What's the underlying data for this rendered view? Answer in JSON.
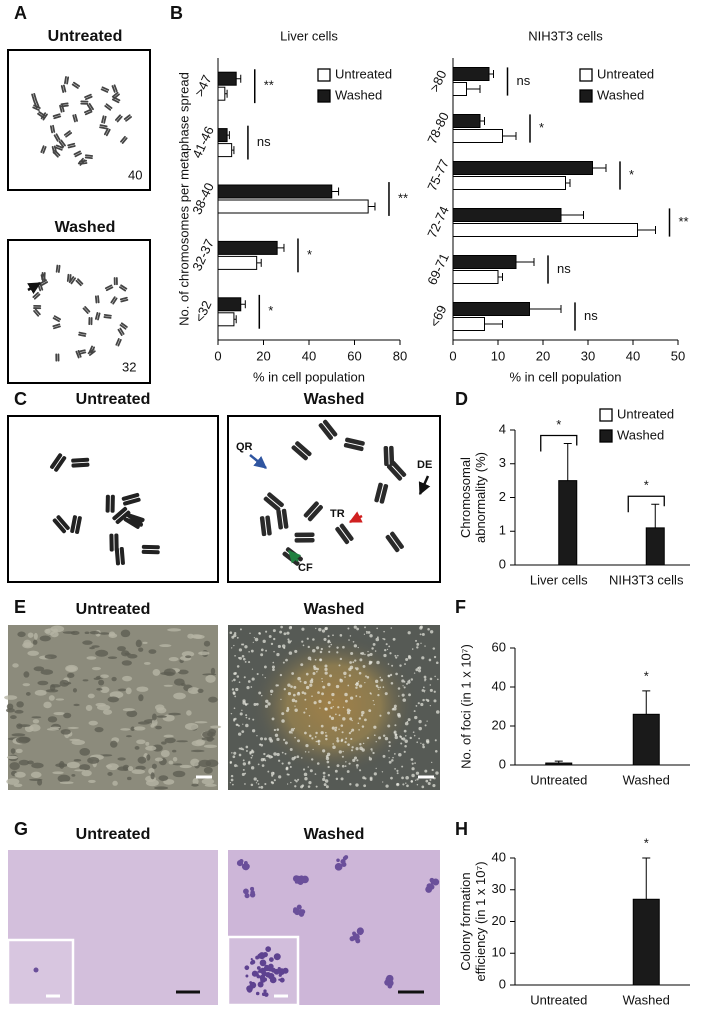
{
  "figure": {
    "panel_labels": [
      "A",
      "B",
      "C",
      "D",
      "E",
      "F",
      "G",
      "H"
    ],
    "A": {
      "untreated": "Untreated",
      "washed": "Washed",
      "count_untreated": "40",
      "count_washed": "32"
    },
    "C": {
      "untreated": "Untreated",
      "washed": "Washed",
      "annotations": [
        "QR",
        "DE",
        "TR",
        "CF"
      ]
    },
    "E": {
      "untreated": "Untreated",
      "washed": "Washed"
    },
    "G": {
      "untreated": "Untreated",
      "washed": "Washed"
    }
  },
  "chart_data": [
    {
      "type": "hbar",
      "title": "Liver cells",
      "categories": [
        ">47",
        "41-46",
        "38-40",
        "32-37",
        "<32"
      ],
      "series": [
        {
          "name": "Untreated",
          "color": "#ffffff",
          "values": [
            3,
            6,
            66,
            17,
            7
          ],
          "errors": [
            1,
            1,
            3,
            2,
            1
          ]
        },
        {
          "name": "Washed",
          "color": "#1a1a1a",
          "values": [
            8,
            4,
            50,
            26,
            10
          ],
          "errors": [
            2,
            1,
            3,
            3,
            2
          ]
        }
      ],
      "significance": [
        "**",
        "ns",
        "**",
        "*",
        "*"
      ],
      "xlim": [
        0,
        80
      ],
      "xticks": [
        0,
        20,
        40,
        60,
        80
      ],
      "xlabel": "% in cell population",
      "ylabel": "No. of chromosomes per metaphase spread",
      "legend": "upper right"
    },
    {
      "type": "hbar",
      "title": "NIH3T3 cells",
      "categories": [
        ">80",
        "78-80",
        "75-77",
        "72-74",
        "69-71",
        "<69"
      ],
      "series": [
        {
          "name": "Untreated",
          "color": "#ffffff",
          "values": [
            3,
            11,
            25,
            41,
            10,
            7
          ],
          "errors": [
            3,
            3,
            1,
            4,
            1,
            4
          ]
        },
        {
          "name": "Washed",
          "color": "#1a1a1a",
          "values": [
            8,
            6,
            31,
            24,
            14,
            17
          ],
          "errors": [
            1,
            1,
            3,
            5,
            4,
            7
          ]
        }
      ],
      "significance": [
        "ns",
        "*",
        "*",
        "**",
        "ns",
        "ns"
      ],
      "xlim": [
        0,
        50
      ],
      "xticks": [
        0,
        10,
        20,
        30,
        40,
        50
      ],
      "xlabel": "% in cell population",
      "legend": "upper right"
    },
    {
      "type": "bar",
      "categories": [
        "Liver cells",
        "NIH3T3 cells"
      ],
      "series": [
        {
          "name": "Untreated",
          "color": "#ffffff",
          "values": [
            0,
            0
          ]
        },
        {
          "name": "Washed",
          "color": "#1a1a1a",
          "values": [
            2.5,
            1.1
          ],
          "errors": [
            1.1,
            0.7
          ]
        }
      ],
      "significance": [
        "*",
        "*"
      ],
      "ylim": [
        0,
        4
      ],
      "yticks": [
        0,
        1,
        2,
        3,
        4
      ],
      "ylabel": [
        "Chromosomal",
        "abnormality (%)"
      ],
      "legend": "upper right"
    },
    {
      "type": "bar",
      "categories": [
        "Untreated",
        "Washed"
      ],
      "values": [
        1,
        26
      ],
      "errors": [
        1,
        12
      ],
      "color": "#1a1a1a",
      "annotation": "*",
      "ylim": [
        0,
        60
      ],
      "yticks": [
        0,
        20,
        40,
        60
      ],
      "ylabel": [
        "No. of foci (in 1 x 10⁷)"
      ]
    },
    {
      "type": "bar",
      "categories": [
        "Untreated",
        "Washed"
      ],
      "values": [
        0,
        27
      ],
      "errors": [
        null,
        13
      ],
      "color": "#1a1a1a",
      "annotation": "*",
      "ylim": [
        0,
        40
      ],
      "yticks": [
        0,
        10,
        20,
        30,
        40
      ],
      "ylabel": [
        "Colony formation",
        "efficiency (in 1 x 10⁷)"
      ]
    }
  ]
}
